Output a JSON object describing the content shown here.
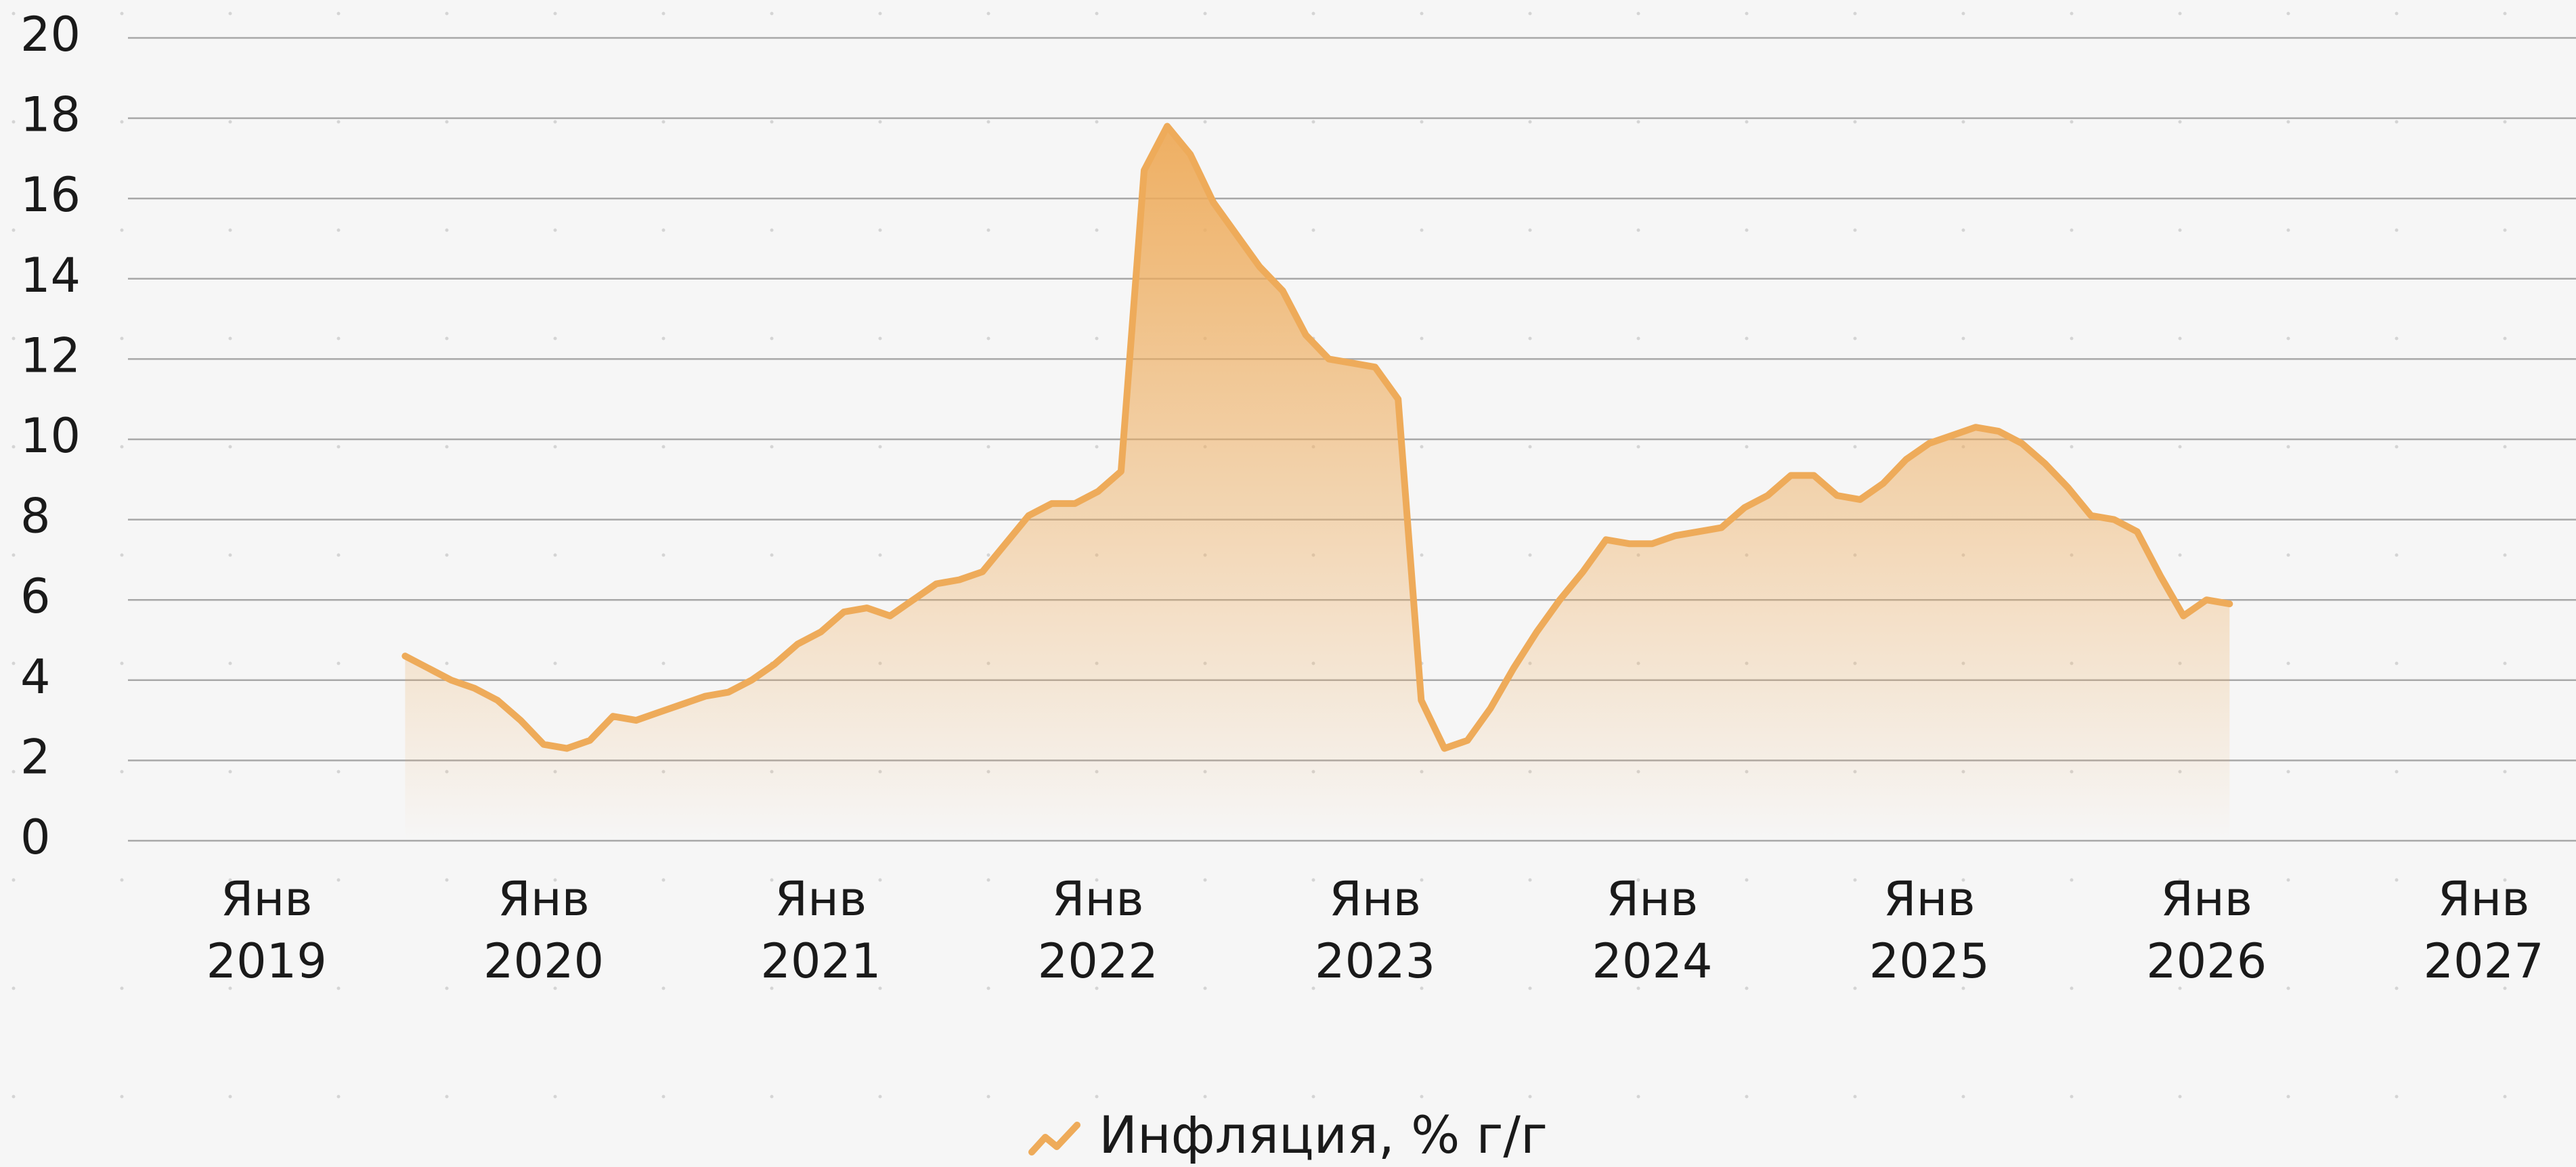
{
  "chart_data": {
    "type": "area",
    "x": [
      "2019-07",
      "2019-08",
      "2019-09",
      "2019-10",
      "2019-11",
      "2019-12",
      "2020-01",
      "2020-02",
      "2020-03",
      "2020-04",
      "2020-05",
      "2020-06",
      "2020-07",
      "2020-08",
      "2020-09",
      "2020-10",
      "2020-11",
      "2020-12",
      "2021-01",
      "2021-02",
      "2021-03",
      "2021-04",
      "2021-05",
      "2021-06",
      "2021-07",
      "2021-08",
      "2021-09",
      "2021-10",
      "2021-11",
      "2021-12",
      "2022-01",
      "2022-02",
      "2022-03",
      "2022-04",
      "2022-05",
      "2022-06",
      "2022-07",
      "2022-08",
      "2022-09",
      "2022-10",
      "2022-11",
      "2022-12",
      "2023-01",
      "2023-02",
      "2023-03",
      "2023-04",
      "2023-05",
      "2023-06",
      "2023-07",
      "2023-08",
      "2023-09",
      "2023-10",
      "2023-11",
      "2023-12",
      "2024-01",
      "2024-02",
      "2024-03",
      "2024-04",
      "2024-05",
      "2024-06",
      "2024-07",
      "2024-08",
      "2024-09",
      "2024-10",
      "2024-11",
      "2024-12",
      "2025-01",
      "2025-02",
      "2025-03",
      "2025-04",
      "2025-05",
      "2025-06",
      "2025-07",
      "2025-08",
      "2025-09",
      "2025-10",
      "2025-11",
      "2025-12",
      "2026-01",
      "2026-02"
    ],
    "series": [
      {
        "name": "Инфляция, % г/г",
        "color": "#eeab5a",
        "values": [
          4.6,
          4.3,
          4.0,
          3.8,
          3.5,
          3.0,
          2.4,
          2.3,
          2.5,
          3.1,
          3.0,
          3.2,
          3.4,
          3.6,
          3.7,
          4.0,
          4.4,
          4.9,
          5.2,
          5.7,
          5.8,
          5.6,
          6.0,
          6.4,
          6.5,
          6.7,
          7.4,
          8.1,
          8.4,
          8.4,
          8.7,
          9.2,
          16.7,
          17.8,
          17.1,
          15.9,
          15.1,
          14.3,
          13.7,
          12.6,
          12.0,
          11.9,
          11.8,
          11.0,
          3.5,
          2.3,
          2.5,
          3.3,
          4.3,
          5.2,
          6.0,
          6.7,
          7.5,
          7.4,
          7.4,
          7.6,
          7.7,
          7.8,
          8.3,
          8.6,
          9.1,
          9.1,
          8.6,
          8.5,
          8.9,
          9.5,
          9.9,
          10.1,
          10.3,
          10.2,
          9.9,
          9.4,
          8.8,
          8.1,
          8.0,
          7.7,
          6.6,
          5.6,
          6.0,
          5.9
        ]
      }
    ],
    "xlim": [
      "2018-07",
      "2027-05"
    ],
    "xticks": [
      {
        "value": "2019-01",
        "label": "Янв\n2019"
      },
      {
        "value": "2020-01",
        "label": "Янв\n2020"
      },
      {
        "value": "2021-01",
        "label": "Янв\n2021"
      },
      {
        "value": "2022-01",
        "label": "Янв\n2022"
      },
      {
        "value": "2023-01",
        "label": "Янв\n2023"
      },
      {
        "value": "2024-01",
        "label": "Янв\n2024"
      },
      {
        "value": "2025-01",
        "label": "Янв\n2025"
      },
      {
        "value": "2026-01",
        "label": "Янв\n2026"
      },
      {
        "value": "2027-01",
        "label": "Янв\n2027"
      }
    ],
    "ylim": [
      0,
      20
    ],
    "yticks": [
      0,
      2,
      4,
      6,
      8,
      10,
      12,
      14,
      16,
      18,
      20
    ],
    "grid": true,
    "legend": "bottom"
  }
}
